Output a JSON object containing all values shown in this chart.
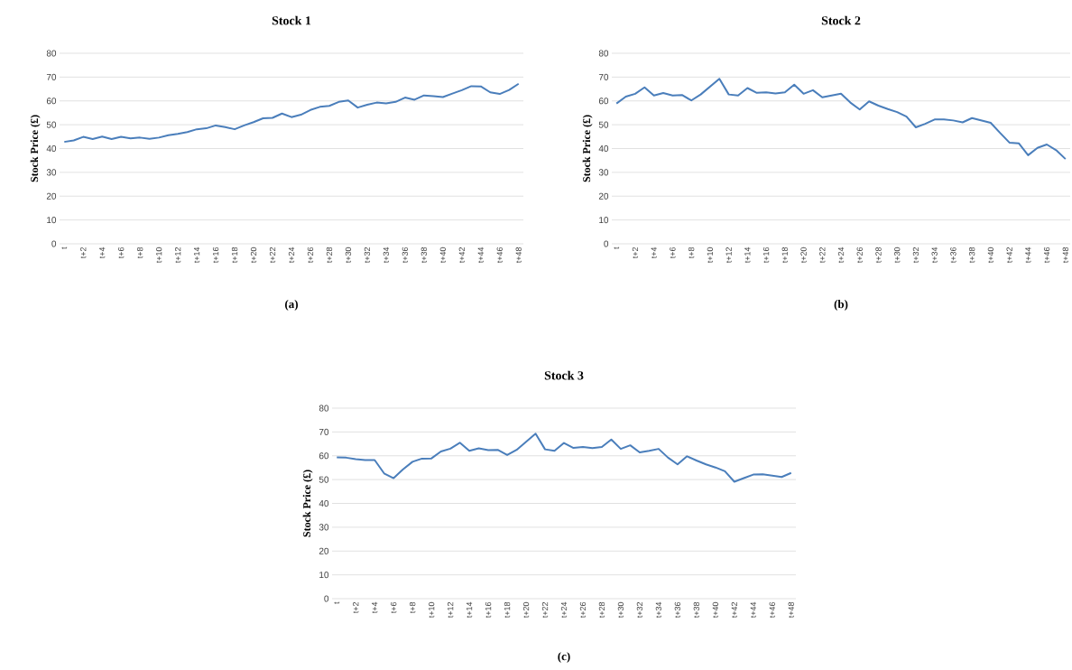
{
  "chart_data": [
    {
      "type": "line",
      "title": "Stock 1",
      "ylabel": "Stock Price (£)",
      "annotations": [
        "(a)"
      ],
      "categories": [
        "t",
        null,
        "t+2",
        null,
        "t+4",
        null,
        "t+6",
        null,
        "t+8",
        null,
        "t+10",
        null,
        "t+12",
        null,
        "t+14",
        null,
        "t+16",
        null,
        "t+18",
        null,
        "t+20",
        null,
        "t+22",
        null,
        "t+24",
        null,
        "t+26",
        null,
        "t+28",
        null,
        "t+30",
        null,
        "t+32",
        null,
        "t+34",
        null,
        "t+36",
        null,
        "t+38",
        null,
        "t+40",
        null,
        "t+42",
        null,
        "t+44",
        null,
        "t+46",
        null,
        "t+48"
      ],
      "values": [
        42.8,
        43.4,
        44.9,
        44.0,
        45.0,
        44.0,
        44.9,
        44.3,
        44.6,
        44.1,
        44.6,
        45.6,
        46.2,
        46.9,
        48.1,
        48.5,
        49.7,
        49.0,
        48.1,
        49.7,
        51.1,
        52.7,
        52.9,
        54.7,
        53.2,
        54.2,
        56.2,
        57.5,
        57.9,
        59.6,
        60.2,
        57.2,
        58.4,
        59.3,
        59.0,
        59.6,
        61.4,
        60.5,
        62.3,
        62.0,
        61.6,
        63.1,
        64.5,
        66.2,
        66.1,
        63.6,
        62.9,
        64.6,
        67.2
      ],
      "color": "#4a7ebb",
      "ylim": [
        0,
        80
      ],
      "yticks": [
        0,
        10,
        20,
        30,
        40,
        50,
        60,
        70,
        80
      ],
      "grid": "y",
      "marker": "none",
      "line_style": "solid"
    },
    {
      "type": "line",
      "title": "Stock 2",
      "ylabel": "Stock Price (£)",
      "annotations": [
        "(b)"
      ],
      "categories": [
        "t",
        null,
        "t+2",
        null,
        "t+4",
        null,
        "t+6",
        null,
        "t+8",
        null,
        "t+10",
        null,
        "t+12",
        null,
        "t+14",
        null,
        "t+16",
        null,
        "t+18",
        null,
        "t+20",
        null,
        "t+22",
        null,
        "t+24",
        null,
        "t+26",
        null,
        "t+28",
        null,
        "t+30",
        null,
        "t+32",
        null,
        "t+34",
        null,
        "t+36",
        null,
        "t+38",
        null,
        "t+40",
        null,
        "t+42",
        null,
        "t+44",
        null,
        "t+46",
        null,
        "t+48"
      ],
      "values": [
        58.9,
        61.8,
        63.0,
        65.7,
        62.3,
        63.3,
        62.3,
        62.5,
        60.2,
        62.7,
        66.0,
        69.3,
        62.7,
        62.3,
        65.4,
        63.4,
        63.6,
        63.1,
        63.6,
        66.8,
        63.0,
        64.5,
        61.5,
        62.3,
        63.0,
        59.3,
        56.4,
        59.8,
        58.0,
        56.6,
        55.3,
        53.4,
        48.9,
        50.4,
        52.2,
        52.2,
        51.8,
        51.0,
        52.8,
        51.8,
        50.8,
        46.6,
        42.5,
        42.2,
        37.2,
        40.3,
        41.7,
        39.3,
        35.6
      ],
      "color": "#4a7ebb",
      "ylim": [
        0,
        80
      ],
      "yticks": [
        0,
        10,
        20,
        30,
        40,
        50,
        60,
        70,
        80
      ],
      "grid": "y",
      "marker": "none",
      "line_style": "solid"
    },
    {
      "type": "line",
      "title": "Stock 3",
      "ylabel": "Stock Price (£)",
      "annotations": [
        "(c)"
      ],
      "categories": [
        "t",
        null,
        "t+2",
        null,
        "t+4",
        null,
        "t+6",
        null,
        "t+8",
        null,
        "t+10",
        null,
        "t+12",
        null,
        "t+14",
        null,
        "t+16",
        null,
        "t+18",
        null,
        "t+20",
        null,
        "t+22",
        null,
        "t+24",
        null,
        "t+26",
        null,
        "t+28",
        null,
        "t+30",
        null,
        "t+32",
        null,
        "t+34",
        null,
        "t+36",
        null,
        "t+38",
        null,
        "t+40",
        null,
        "t+42",
        null,
        "t+44",
        null,
        "t+46",
        null,
        "t+48"
      ],
      "values": [
        59.3,
        59.2,
        58.6,
        58.2,
        58.2,
        52.6,
        50.6,
        54.3,
        57.5,
        58.8,
        58.9,
        61.8,
        63.0,
        65.5,
        62.1,
        63.1,
        62.4,
        62.5,
        60.3,
        62.5,
        65.9,
        69.3,
        62.7,
        62.1,
        65.4,
        63.3,
        63.7,
        63.2,
        63.7,
        66.8,
        62.9,
        64.4,
        61.4,
        62.1,
        62.9,
        59.2,
        56.4,
        59.8,
        58.0,
        56.4,
        55.1,
        53.5,
        49.1,
        50.6,
        52.1,
        52.2,
        51.7,
        51.1,
        52.8
      ],
      "color": "#4a7ebb",
      "ylim": [
        0,
        80
      ],
      "yticks": [
        0,
        10,
        20,
        30,
        40,
        50,
        60,
        70,
        80
      ],
      "grid": "y",
      "marker": "none",
      "line_style": "solid"
    }
  ]
}
